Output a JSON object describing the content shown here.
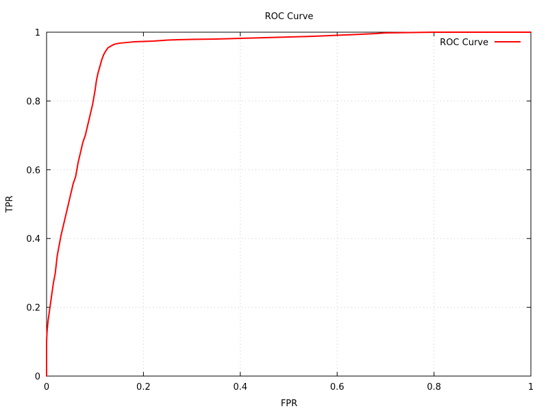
{
  "chart_data": {
    "type": "line",
    "title": "ROC Curve",
    "xlabel": "FPR",
    "ylabel": "TPR",
    "xlim": [
      0,
      1
    ],
    "ylim": [
      0,
      1
    ],
    "grid": true,
    "legend_position": "top-right",
    "x_ticks": [
      0,
      0.2,
      0.4,
      0.6,
      0.8,
      1
    ],
    "x_tick_labels": [
      "0",
      "0.2",
      "0.4",
      "0.6",
      "0.8",
      "1"
    ],
    "y_ticks": [
      0,
      0.2,
      0.4,
      0.6,
      0.8,
      1
    ],
    "y_tick_labels": [
      "0",
      "0.2",
      "0.4",
      "0.6",
      "0.8",
      "1"
    ],
    "series": [
      {
        "name": "ROC Curve",
        "color": "#ff0000",
        "x": [
          0,
          0,
          0.001,
          0.003,
          0.006,
          0.01,
          0.014,
          0.018,
          0.022,
          0.026,
          0.03,
          0.035,
          0.04,
          0.045,
          0.05,
          0.055,
          0.06,
          0.065,
          0.07,
          0.075,
          0.08,
          0.085,
          0.09,
          0.095,
          0.1,
          0.103,
          0.106,
          0.11,
          0.114,
          0.118,
          0.122,
          0.127,
          0.133,
          0.14,
          0.15,
          0.165,
          0.18,
          0.2,
          0.22,
          0.25,
          0.27,
          0.3,
          0.35,
          0.4,
          0.45,
          0.5,
          0.55,
          0.6,
          0.65,
          0.68,
          0.7,
          0.75,
          0.8,
          0.85,
          0.9,
          0.95,
          1.0
        ],
        "y": [
          0,
          0.1,
          0.13,
          0.16,
          0.19,
          0.23,
          0.27,
          0.3,
          0.35,
          0.38,
          0.41,
          0.44,
          0.47,
          0.5,
          0.53,
          0.56,
          0.58,
          0.62,
          0.65,
          0.68,
          0.7,
          0.73,
          0.76,
          0.79,
          0.83,
          0.86,
          0.88,
          0.9,
          0.92,
          0.935,
          0.945,
          0.955,
          0.96,
          0.965,
          0.968,
          0.97,
          0.972,
          0.973,
          0.974,
          0.977,
          0.978,
          0.979,
          0.98,
          0.982,
          0.984,
          0.986,
          0.988,
          0.991,
          0.994,
          0.996,
          0.998,
          0.999,
          1.0,
          1.0,
          1.0,
          1.0,
          1.0
        ]
      }
    ]
  }
}
